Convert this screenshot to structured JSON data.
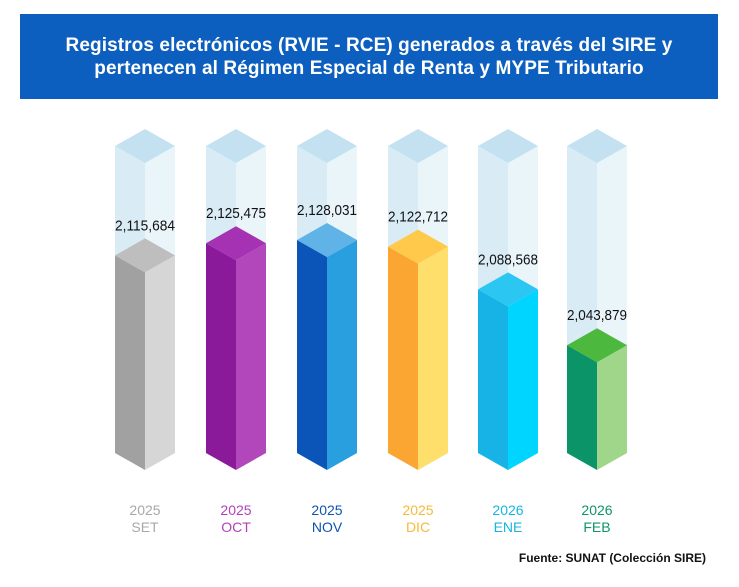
{
  "chart_data": {
    "type": "bar",
    "title_lines": [
      "Registros electrónicos (RVIE - RCE) generados a través del SIRE y",
      "pertenecen al Régimen Especial de Renta y MYPE Tributario"
    ],
    "categories": [
      {
        "year": "2025",
        "month": "SET"
      },
      {
        "year": "2025",
        "month": "OCT"
      },
      {
        "year": "2025",
        "month": "NOV"
      },
      {
        "year": "2025",
        "month": "DIC"
      },
      {
        "year": "2026",
        "month": "ENE"
      },
      {
        "year": "2026",
        "month": "FEB"
      }
    ],
    "values": [
      2115684,
      2125475,
      2128031,
      2122712,
      2088568,
      2043879
    ],
    "value_labels": [
      "2,115,684",
      "2,125,475",
      "2,128,031",
      "2,122,712",
      "2,088,568",
      "2,043,879"
    ],
    "source": "Fuente: SUNAT (Colección SIRE)"
  },
  "colors": {
    "banner": "#0d5fbf",
    "ghost_left": "#d9ecf5",
    "ghost_right": "#eaf5fa",
    "ghost_top": "#c3e1f0",
    "bars": [
      {
        "left": "#a1a1a1",
        "right": "#d6d6d6",
        "top": "#bebebe",
        "label": "#a8a8a8"
      },
      {
        "left": "#8a1a9a",
        "right": "#b147bb",
        "top": "#a532b2",
        "label": "#b33fbb"
      },
      {
        "left": "#0b55b8",
        "right": "#2a9fe0",
        "top": "#5fb3e6",
        "label": "#0d55b0"
      },
      {
        "left": "#fba532",
        "right": "#fedf6b",
        "top": "#ffc94b",
        "label": "#f8b93a"
      },
      {
        "left": "#17b3e6",
        "right": "#00d5ff",
        "top": "#2bc6f2",
        "label": "#18b4e3"
      },
      {
        "left": "#0a9468",
        "right": "#9fd68a",
        "top": "#4cb83d",
        "label": "#0e9468"
      }
    ]
  }
}
